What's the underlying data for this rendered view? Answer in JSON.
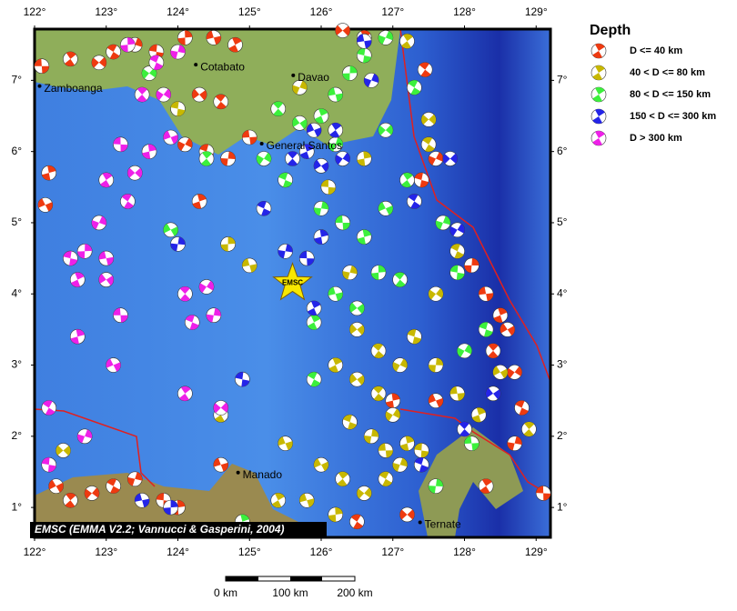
{
  "map": {
    "xlim": [
      122,
      129.2
    ],
    "ylim": [
      0.58,
      7.72
    ],
    "xticks": [
      {
        "value": 122,
        "label": "122°"
      },
      {
        "value": 123,
        "label": "123°"
      },
      {
        "value": 124,
        "label": "124°"
      },
      {
        "value": 125,
        "label": "125°"
      },
      {
        "value": 126,
        "label": "126°"
      },
      {
        "value": 127,
        "label": "127°"
      },
      {
        "value": 128,
        "label": "128°"
      },
      {
        "value": 129,
        "label": "129°"
      }
    ],
    "yticks": [
      {
        "value": 1,
        "label": "1°"
      },
      {
        "value": 2,
        "label": "2°"
      },
      {
        "value": 3,
        "label": "3°"
      },
      {
        "value": 4,
        "label": "4°"
      },
      {
        "value": 5,
        "label": "5°"
      },
      {
        "value": 6,
        "label": "6°"
      },
      {
        "value": 7,
        "label": "7°"
      }
    ],
    "cities": [
      {
        "name": "Zamboanga",
        "lon": 122.07,
        "lat": 6.92
      },
      {
        "name": "Cotabato",
        "lon": 124.25,
        "lat": 7.22
      },
      {
        "name": "Davao",
        "lon": 125.61,
        "lat": 7.07
      },
      {
        "name": "General Santos",
        "lon": 125.17,
        "lat": 6.11
      },
      {
        "name": "Manado",
        "lon": 124.84,
        "lat": 1.49
      },
      {
        "name": "Ternate",
        "lon": 127.38,
        "lat": 0.79
      }
    ],
    "star_label": "EMSC",
    "star": {
      "lon": 125.6,
      "lat": 4.15
    },
    "credit": "EMSC (EMMA V2.2; Vannucci & Gasperini, 2004)",
    "scale_labels": [
      "0 km",
      "100 km",
      "200 km"
    ],
    "legend": {
      "title": "Depth",
      "items": [
        {
          "name": "D <= 40 km",
          "color": "#ee3a10",
          "events": [
            [
              122.1,
              7.2
            ],
            [
              122.2,
              5.7
            ],
            [
              122.15,
              5.25
            ],
            [
              122.5,
              7.3
            ],
            [
              122.9,
              7.25
            ],
            [
              123.1,
              7.4
            ],
            [
              123.4,
              7.5
            ],
            [
              123.7,
              7.4
            ],
            [
              124.1,
              7.6
            ],
            [
              124.5,
              7.6
            ],
            [
              124.8,
              7.5
            ],
            [
              124.3,
              6.8
            ],
            [
              124.6,
              6.7
            ],
            [
              124.1,
              6.1
            ],
            [
              124.4,
              6.0
            ],
            [
              124.7,
              5.9
            ],
            [
              125.0,
              6.2
            ],
            [
              124.3,
              5.3
            ],
            [
              122.3,
              1.3
            ],
            [
              122.5,
              1.1
            ],
            [
              122.8,
              1.2
            ],
            [
              123.1,
              1.3
            ],
            [
              123.4,
              1.4
            ],
            [
              123.8,
              1.1
            ],
            [
              124.0,
              1.0
            ],
            [
              124.6,
              1.6
            ],
            [
              126.6,
              7.6
            ],
            [
              126.3,
              7.7
            ],
            [
              127.45,
              7.15
            ],
            [
              127.6,
              5.9
            ],
            [
              127.4,
              5.6
            ],
            [
              128.1,
              4.4
            ],
            [
              128.3,
              4.0
            ],
            [
              128.5,
              3.7
            ],
            [
              128.6,
              3.5
            ],
            [
              128.4,
              3.2
            ],
            [
              128.7,
              2.9
            ],
            [
              128.8,
              2.4
            ],
            [
              128.7,
              1.9
            ],
            [
              129.1,
              1.2
            ],
            [
              127.0,
              2.5
            ],
            [
              127.6,
              2.5
            ],
            [
              128.3,
              1.3
            ],
            [
              127.2,
              0.9
            ],
            [
              126.5,
              0.8
            ]
          ]
        },
        {
          "name": "40 < D <= 80 km",
          "color": "#c8b800",
          "events": [
            [
              127.2,
              7.55
            ],
            [
              127.5,
              6.45
            ],
            [
              127.5,
              6.1
            ],
            [
              125.7,
              6.9
            ],
            [
              124.0,
              6.6
            ],
            [
              124.7,
              4.7
            ],
            [
              125.0,
              4.4
            ],
            [
              126.2,
              3.0
            ],
            [
              126.5,
              2.8
            ],
            [
              126.8,
              2.6
            ],
            [
              127.0,
              2.3
            ],
            [
              126.4,
              2.2
            ],
            [
              126.7,
              2.0
            ],
            [
              126.9,
              1.8
            ],
            [
              127.2,
              1.9
            ],
            [
              126.0,
              1.6
            ],
            [
              126.3,
              1.4
            ],
            [
              126.6,
              1.2
            ],
            [
              126.9,
              1.4
            ],
            [
              127.1,
              1.6
            ],
            [
              127.4,
              1.8
            ],
            [
              126.2,
              0.9
            ],
            [
              125.8,
              1.1
            ],
            [
              125.4,
              1.1
            ],
            [
              126.5,
              3.5
            ],
            [
              126.8,
              3.2
            ],
            [
              127.1,
              3.0
            ],
            [
              127.3,
              3.4
            ],
            [
              127.6,
              3.0
            ],
            [
              127.9,
              2.6
            ],
            [
              128.2,
              2.3
            ],
            [
              128.5,
              2.9
            ],
            [
              128.9,
              2.1
            ],
            [
              127.6,
              4.0
            ],
            [
              127.9,
              4.6
            ],
            [
              126.4,
              4.3
            ],
            [
              126.1,
              5.5
            ],
            [
              126.6,
              5.9
            ],
            [
              125.5,
              1.9
            ],
            [
              124.6,
              2.3
            ],
            [
              122.4,
              1.8
            ]
          ]
        },
        {
          "name": "80 < D <= 150 km",
          "color": "#3cf03c",
          "events": [
            [
              126.9,
              7.6
            ],
            [
              126.6,
              7.35
            ],
            [
              126.4,
              7.1
            ],
            [
              126.2,
              6.8
            ],
            [
              126.0,
              6.5
            ],
            [
              125.7,
              6.4
            ],
            [
              125.4,
              6.6
            ],
            [
              125.2,
              5.9
            ],
            [
              125.5,
              5.6
            ],
            [
              126.0,
              5.2
            ],
            [
              126.3,
              5.0
            ],
            [
              126.6,
              4.8
            ],
            [
              126.9,
              5.2
            ],
            [
              127.2,
              5.6
            ],
            [
              126.9,
              6.3
            ],
            [
              127.3,
              6.9
            ],
            [
              127.7,
              5.0
            ],
            [
              127.9,
              4.3
            ],
            [
              126.8,
              4.3
            ],
            [
              126.2,
              4.0
            ],
            [
              125.9,
              3.6
            ],
            [
              126.5,
              3.8
            ],
            [
              127.1,
              4.2
            ],
            [
              128.0,
              3.2
            ],
            [
              128.3,
              3.5
            ],
            [
              127.6,
              1.3
            ],
            [
              128.1,
              1.9
            ],
            [
              124.9,
              0.8
            ],
            [
              123.9,
              4.9
            ],
            [
              124.4,
              5.9
            ],
            [
              123.6,
              7.1
            ],
            [
              125.9,
              2.8
            ],
            [
              126.2,
              6.1
            ]
          ]
        },
        {
          "name": "150 < D <= 300 km",
          "color": "#2424e8",
          "events": [
            [
              126.6,
              7.55
            ],
            [
              125.8,
              6.0
            ],
            [
              126.0,
              5.8
            ],
            [
              125.6,
              5.9
            ],
            [
              126.3,
              5.9
            ],
            [
              125.2,
              5.2
            ],
            [
              125.5,
              4.6
            ],
            [
              125.8,
              4.5
            ],
            [
              126.0,
              4.8
            ],
            [
              125.9,
              6.3
            ],
            [
              126.2,
              6.3
            ],
            [
              127.8,
              5.9
            ],
            [
              127.3,
              5.3
            ],
            [
              126.7,
              7.0
            ],
            [
              124.9,
              2.8
            ],
            [
              123.9,
              1.0
            ],
            [
              123.5,
              1.1
            ],
            [
              125.9,
              3.8
            ],
            [
              128.4,
              2.6
            ],
            [
              128.0,
              2.1
            ],
            [
              127.9,
              4.9
            ],
            [
              127.4,
              1.6
            ],
            [
              124.0,
              4.7
            ]
          ]
        },
        {
          "name": "D > 300 km",
          "color": "#ee20e8",
          "events": [
            [
              123.5,
              6.8
            ],
            [
              123.8,
              6.8
            ],
            [
              123.7,
              7.25
            ],
            [
              124.0,
              7.4
            ],
            [
              123.2,
              6.1
            ],
            [
              123.6,
              6.0
            ],
            [
              123.9,
              6.2
            ],
            [
              123.0,
              5.6
            ],
            [
              123.4,
              5.7
            ],
            [
              123.3,
              5.3
            ],
            [
              122.9,
              5.0
            ],
            [
              122.5,
              4.5
            ],
            [
              122.7,
              4.6
            ],
            [
              123.0,
              4.5
            ],
            [
              122.6,
              4.2
            ],
            [
              123.0,
              4.2
            ],
            [
              124.1,
              4.0
            ],
            [
              124.4,
              4.1
            ],
            [
              124.2,
              3.6
            ],
            [
              124.5,
              3.7
            ],
            [
              123.2,
              3.7
            ],
            [
              122.6,
              3.4
            ],
            [
              123.1,
              3.0
            ],
            [
              124.1,
              2.6
            ],
            [
              124.6,
              2.4
            ],
            [
              122.2,
              2.4
            ],
            [
              122.7,
              2.0
            ],
            [
              122.2,
              1.6
            ],
            [
              123.3,
              7.5
            ]
          ]
        }
      ]
    }
  }
}
